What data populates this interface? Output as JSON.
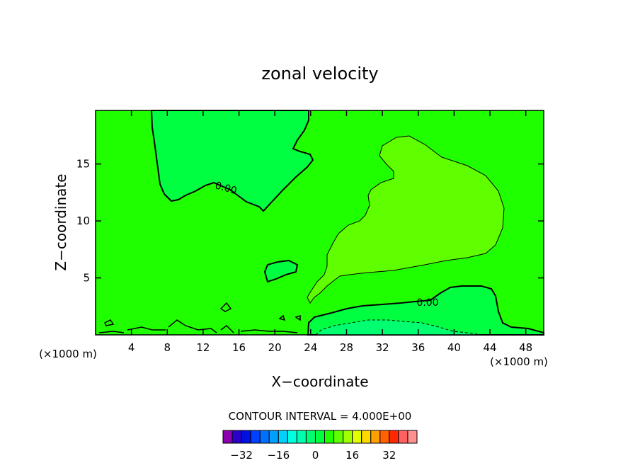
{
  "chart_data": {
    "type": "heatmap",
    "title": "zonal velocity",
    "xlabel": "X−coordinate",
    "ylabel": "Z−coordinate",
    "x_unit_left": "(×1000 m)",
    "x_unit_right": "(×1000 m)",
    "xlim": [
      0,
      50
    ],
    "ylim": [
      0,
      19.7
    ],
    "x_ticks": [
      4,
      8,
      12,
      16,
      20,
      24,
      28,
      32,
      36,
      40,
      44,
      48
    ],
    "y_ticks": [
      5,
      10,
      15
    ],
    "contour_interval_text": "CONTOUR INTERVAL = 4.000E+00",
    "contour_labels": [
      "0.00",
      "0.00"
    ],
    "colorbar": {
      "tick_labels": [
        "−32",
        "−16",
        "0",
        "16",
        "32"
      ],
      "tick_values": [
        -32,
        -16,
        0,
        16,
        32
      ],
      "colors": [
        "#8b00b0",
        "#2a00c8",
        "#0010e0",
        "#0040ff",
        "#0070ff",
        "#00a0ff",
        "#00d0ff",
        "#00ffe0",
        "#00ffb0",
        "#00ff70",
        "#00ff40",
        "#20ff00",
        "#60ff00",
        "#a0ff00",
        "#e0ff00",
        "#ffd800",
        "#ffa000",
        "#ff6000",
        "#ff2800",
        "#ff6060",
        "#ff9090"
      ]
    },
    "fields": [
      {
        "name": "background",
        "value_range": [
          4,
          8
        ],
        "color": "#20ff00"
      },
      {
        "name": "upper-left negative lobe",
        "value_range": [
          0,
          4
        ],
        "color": "#00ff40",
        "bounding_contour": "0.00"
      },
      {
        "name": "right-center positive lobe",
        "value_range": [
          8,
          12
        ],
        "color": "#60ff00"
      },
      {
        "name": "bottom-right negative layer",
        "value_range": [
          0,
          4
        ],
        "color": "#00ff40",
        "bounding_contour": "0.00"
      },
      {
        "name": "small blob near (18, 5.5)",
        "value_range": [
          0,
          4
        ],
        "color": "#00ff40"
      },
      {
        "name": "near-surface strong negative",
        "value_range": [
          -4,
          0
        ],
        "color": "#00ff70"
      }
    ]
  }
}
